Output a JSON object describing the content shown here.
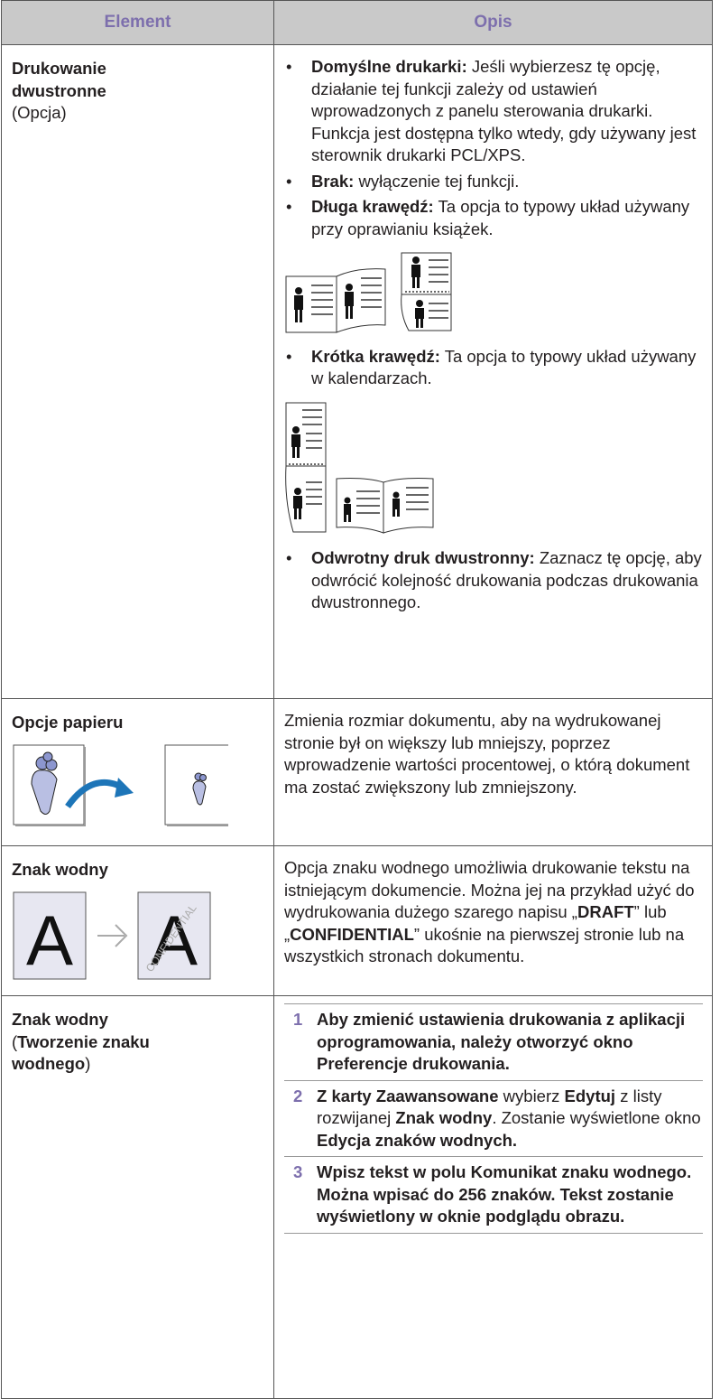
{
  "table": {
    "header": {
      "element": "Element",
      "opis": "Opis"
    },
    "rows": [
      {
        "element": [
          [
            {
              "b": "Drukowanie dwustronne"
            }
          ],
          [
            {
              "t": "(Opcja)"
            }
          ]
        ],
        "opis": {
          "bullets": [
            [
              {
                "b": "Domyślne drukarki:"
              },
              {
                "t": " Jeśli wybierzesz tę opcję, działanie tej funkcji zależy od ustawień wprowadzonych z panelu sterowania drukarki. Funkcja jest dostępna tylko wtedy, gdy używany jest sterownik drukarki PCL/XPS."
              }
            ],
            [
              {
                "b": "Brak:"
              },
              {
                "t": " wyłączenie tej funkcji."
              }
            ],
            [
              {
                "b": "Długa krawędź:"
              },
              {
                "t": " Ta opcja to typowy układ używany przy oprawianiu książek."
              }
            ],
            [
              {
                "b": "Krótka krawędź:"
              },
              {
                "t": " Ta opcja to typowy układ używany w kalendarzach."
              }
            ],
            [
              {
                "b": "Odwrotny druk dwustronny:"
              },
              {
                "t": " Zaznacz tę opcję, aby odwrócić kolejność drukowania podczas drukowania dwustronnego."
              }
            ]
          ]
        }
      },
      {
        "element": [
          [
            {
              "b": "Opcje papieru"
            }
          ]
        ],
        "opis": [
          {
            "t": "Zmienia rozmiar dokumentu, aby na wydrukowanej stronie był on większy lub mniejszy, poprzez wprowadzenie wartości procentowej, o którą dokument ma zostać zwiększony lub zmniejszony."
          }
        ]
      },
      {
        "element": [
          [
            {
              "b": "Znak wodny"
            }
          ]
        ],
        "image": {
          "letter": "A",
          "stamp": "CONFIDENTIAL"
        },
        "opis": [
          {
            "t": "Opcja znaku wodnego umożliwia drukowanie tekstu na istniejącym dokumencie. Można jej na przykład użyć do wydrukowania dużego szarego napisu „"
          },
          {
            "b": "DRAFT"
          },
          {
            "t": "” lub „"
          },
          {
            "b": "CONFIDENTIAL"
          },
          {
            "t": "” ukośnie na pierwszej stronie lub na wszystkich stronach dokumentu."
          }
        ]
      },
      {
        "element": [
          [
            {
              "b": "Znak wodny"
            }
          ],
          [
            {
              "t": "("
            },
            {
              "b": "Tworzenie znaku wodnego"
            },
            {
              "t": ")"
            }
          ]
        ],
        "opis": {
          "steps": [
            {
              "num": "1",
              "text": [
                {
                  "b": "Aby zmienić ustawienia drukowania z aplikacji oprogramowania, należy otworzyć okno Preferencje drukowania."
                }
              ]
            },
            {
              "num": "2",
              "text": [
                {
                  "b": "Z karty Zaawansowane"
                },
                {
                  "t": " wybierz "
                },
                {
                  "b": "Edytuj"
                },
                {
                  "t": " z listy rozwijanej "
                },
                {
                  "b": "Znak wodny"
                },
                {
                  "t": ". Zostanie wyświetlone okno "
                },
                {
                  "b": "Edycja znaków wodnych."
                }
              ]
            },
            {
              "num": "3",
              "text": [
                {
                  "b": "Wpisz tekst w polu Komunikat znaku wodnego. Można wpisać do 256 znaków. Tekst zostanie wyświetlony w oknie podglądu obrazu."
                }
              ]
            }
          ]
        }
      }
    ]
  }
}
